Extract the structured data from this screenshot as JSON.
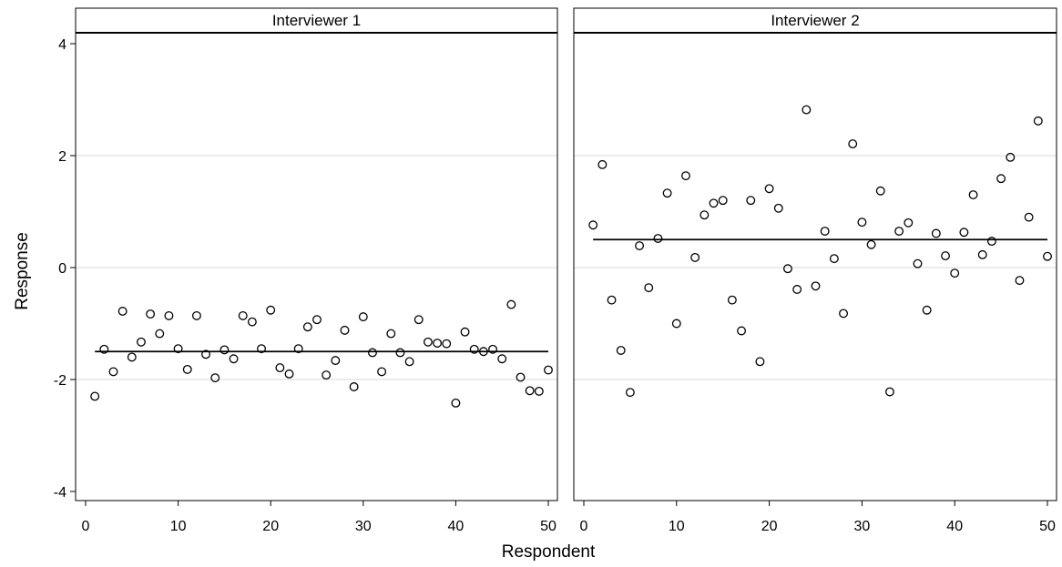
{
  "chart_data": {
    "type": "scatter",
    "xlabel": "Respondent",
    "ylabel": "Response",
    "xlim": [
      0,
      50
    ],
    "ylim": [
      -4,
      4
    ],
    "xticks": [
      0,
      10,
      20,
      30,
      40,
      50
    ],
    "yticks": [
      -4,
      -2,
      0,
      2,
      4
    ],
    "grid": true,
    "panels": [
      {
        "title": "Interviewer 1",
        "mean": -1.5,
        "x": [
          1,
          2,
          3,
          4,
          5,
          6,
          7,
          8,
          9,
          10,
          11,
          12,
          13,
          14,
          15,
          16,
          17,
          18,
          19,
          20,
          21,
          22,
          23,
          24,
          25,
          26,
          27,
          28,
          29,
          30,
          31,
          32,
          33,
          34,
          35,
          36,
          37,
          38,
          39,
          40,
          41,
          42,
          43,
          44,
          45,
          46,
          47,
          48,
          49,
          50
        ],
        "y": [
          -2.3,
          -1.46,
          -1.86,
          -0.78,
          -1.6,
          -1.33,
          -0.83,
          -1.18,
          -0.86,
          -1.45,
          -1.82,
          -0.86,
          -1.55,
          -1.97,
          -1.47,
          -1.63,
          -0.86,
          -0.97,
          -1.45,
          -0.76,
          -1.79,
          -1.9,
          -1.45,
          -1.06,
          -0.93,
          -1.92,
          -1.66,
          -1.12,
          -2.13,
          -0.88,
          -1.52,
          -1.86,
          -1.18,
          -1.52,
          -1.68,
          -0.93,
          -1.33,
          -1.35,
          -1.36,
          -2.42,
          -1.15,
          -1.46,
          -1.5,
          -1.46,
          -1.63,
          -0.66,
          -1.96,
          -2.2,
          -2.21,
          -1.83
        ]
      },
      {
        "title": "Interviewer 2",
        "mean": 0.5,
        "x": [
          1,
          2,
          3,
          4,
          5,
          6,
          7,
          8,
          9,
          10,
          11,
          12,
          13,
          14,
          15,
          16,
          17,
          18,
          19,
          20,
          21,
          22,
          23,
          24,
          25,
          26,
          27,
          28,
          29,
          30,
          31,
          32,
          33,
          34,
          35,
          36,
          37,
          38,
          39,
          40,
          41,
          42,
          43,
          44,
          45,
          46,
          47,
          48,
          49,
          50
        ],
        "y": [
          0.76,
          1.84,
          -0.58,
          -1.48,
          -2.23,
          0.39,
          -0.36,
          0.52,
          1.33,
          -1.0,
          1.64,
          0.18,
          0.94,
          1.15,
          1.2,
          -0.58,
          -1.13,
          1.2,
          -1.68,
          1.41,
          1.06,
          -0.02,
          -0.39,
          2.82,
          -0.33,
          0.65,
          0.16,
          -0.82,
          2.21,
          0.81,
          0.41,
          1.37,
          -2.22,
          0.65,
          0.8,
          0.07,
          -0.76,
          0.61,
          0.21,
          -0.1,
          0.63,
          1.3,
          0.23,
          0.47,
          1.59,
          1.97,
          -0.23,
          0.9,
          2.62,
          0.2
        ]
      }
    ]
  }
}
